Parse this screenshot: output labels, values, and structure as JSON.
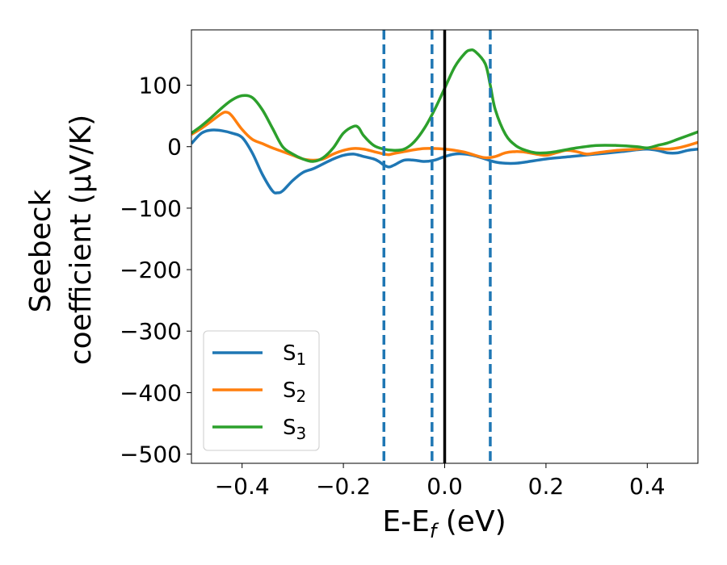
{
  "chart_data": {
    "type": "line",
    "title": "",
    "xlabel": "E-E",
    "xlabel_sub": "f",
    "xlabel_unit": " (eV)",
    "ylabel_line1": "Seebeck",
    "ylabel_line2": "coefficient  (μV/K)",
    "xlim": [
      -0.5,
      0.5
    ],
    "ylim": [
      -515,
      190
    ],
    "x_ticks": [
      -0.4,
      -0.2,
      0.0,
      0.2,
      0.4
    ],
    "x_tick_labels": [
      "−0.4",
      "−0.2",
      "0.0",
      "0.2",
      "0.4"
    ],
    "y_ticks": [
      100,
      0,
      -100,
      -200,
      -300,
      -400,
      -500
    ],
    "y_tick_labels": [
      "100",
      "0",
      "−100",
      "−200",
      "−300",
      "−400",
      "−500"
    ],
    "legend_position": "lower-left",
    "grid": false,
    "series": [
      {
        "name": "S",
        "sub": "1",
        "color": "#1f77b4",
        "points": [
          [
            -0.5,
            5
          ],
          [
            -0.48,
            22
          ],
          [
            -0.46,
            27
          ],
          [
            -0.44,
            26
          ],
          [
            -0.42,
            22
          ],
          [
            -0.4,
            15
          ],
          [
            -0.38,
            -10
          ],
          [
            -0.36,
            -45
          ],
          [
            -0.34,
            -72
          ],
          [
            -0.33,
            -75
          ],
          [
            -0.32,
            -72
          ],
          [
            -0.3,
            -55
          ],
          [
            -0.28,
            -42
          ],
          [
            -0.26,
            -36
          ],
          [
            -0.24,
            -28
          ],
          [
            -0.22,
            -20
          ],
          [
            -0.2,
            -14
          ],
          [
            -0.18,
            -12
          ],
          [
            -0.16,
            -16
          ],
          [
            -0.14,
            -20
          ],
          [
            -0.13,
            -24
          ],
          [
            -0.12,
            -30
          ],
          [
            -0.11,
            -33
          ],
          [
            -0.1,
            -30
          ],
          [
            -0.08,
            -22
          ],
          [
            -0.06,
            -22
          ],
          [
            -0.04,
            -24
          ],
          [
            -0.02,
            -22
          ],
          [
            0.0,
            -16
          ],
          [
            0.02,
            -12
          ],
          [
            0.04,
            -12
          ],
          [
            0.06,
            -15
          ],
          [
            0.08,
            -20
          ],
          [
            0.1,
            -25
          ],
          [
            0.12,
            -27
          ],
          [
            0.14,
            -27
          ],
          [
            0.16,
            -25
          ],
          [
            0.2,
            -20
          ],
          [
            0.25,
            -16
          ],
          [
            0.3,
            -12
          ],
          [
            0.35,
            -8
          ],
          [
            0.38,
            -5
          ],
          [
            0.4,
            -4
          ],
          [
            0.42,
            -6
          ],
          [
            0.44,
            -10
          ],
          [
            0.46,
            -10
          ],
          [
            0.48,
            -6
          ],
          [
            0.5,
            -4
          ]
        ]
      },
      {
        "name": "S",
        "sub": "2",
        "color": "#ff7f0e",
        "points": [
          [
            -0.5,
            20
          ],
          [
            -0.48,
            30
          ],
          [
            -0.46,
            42
          ],
          [
            -0.44,
            54
          ],
          [
            -0.43,
            56
          ],
          [
            -0.42,
            50
          ],
          [
            -0.4,
            28
          ],
          [
            -0.38,
            12
          ],
          [
            -0.36,
            5
          ],
          [
            -0.34,
            -2
          ],
          [
            -0.32,
            -8
          ],
          [
            -0.3,
            -14
          ],
          [
            -0.28,
            -20
          ],
          [
            -0.26,
            -22
          ],
          [
            -0.24,
            -20
          ],
          [
            -0.22,
            -12
          ],
          [
            -0.2,
            -6
          ],
          [
            -0.18,
            -3
          ],
          [
            -0.16,
            -4
          ],
          [
            -0.14,
            -8
          ],
          [
            -0.12,
            -12
          ],
          [
            -0.11,
            -13
          ],
          [
            -0.1,
            -11
          ],
          [
            -0.08,
            -8
          ],
          [
            -0.06,
            -5
          ],
          [
            -0.04,
            -3
          ],
          [
            -0.02,
            -3
          ],
          [
            0.0,
            -4
          ],
          [
            0.02,
            -6
          ],
          [
            0.04,
            -9
          ],
          [
            0.06,
            -14
          ],
          [
            0.08,
            -18
          ],
          [
            0.1,
            -16
          ],
          [
            0.12,
            -10
          ],
          [
            0.14,
            -8
          ],
          [
            0.16,
            -9
          ],
          [
            0.18,
            -12
          ],
          [
            0.2,
            -14
          ],
          [
            0.22,
            -10
          ],
          [
            0.24,
            -6
          ],
          [
            0.26,
            -8
          ],
          [
            0.28,
            -12
          ],
          [
            0.3,
            -10
          ],
          [
            0.34,
            -6
          ],
          [
            0.38,
            -4
          ],
          [
            0.4,
            -2
          ],
          [
            0.42,
            -3
          ],
          [
            0.44,
            -4
          ],
          [
            0.46,
            -2
          ],
          [
            0.48,
            2
          ],
          [
            0.5,
            7
          ]
        ]
      },
      {
        "name": "S",
        "sub": "3",
        "color": "#2ca02c",
        "points": [
          [
            -0.5,
            22
          ],
          [
            -0.48,
            34
          ],
          [
            -0.46,
            48
          ],
          [
            -0.44,
            63
          ],
          [
            -0.42,
            76
          ],
          [
            -0.4,
            83
          ],
          [
            -0.38,
            80
          ],
          [
            -0.36,
            60
          ],
          [
            -0.34,
            30
          ],
          [
            -0.32,
            0
          ],
          [
            -0.3,
            -12
          ],
          [
            -0.28,
            -20
          ],
          [
            -0.26,
            -24
          ],
          [
            -0.24,
            -18
          ],
          [
            -0.22,
            -2
          ],
          [
            -0.2,
            22
          ],
          [
            -0.18,
            33
          ],
          [
            -0.17,
            31
          ],
          [
            -0.16,
            18
          ],
          [
            -0.14,
            2
          ],
          [
            -0.12,
            -4
          ],
          [
            -0.1,
            -6
          ],
          [
            -0.08,
            -4
          ],
          [
            -0.06,
            8
          ],
          [
            -0.04,
            30
          ],
          [
            -0.02,
            60
          ],
          [
            0.0,
            95
          ],
          [
            0.02,
            130
          ],
          [
            0.04,
            152
          ],
          [
            0.05,
            157
          ],
          [
            0.06,
            155
          ],
          [
            0.08,
            135
          ],
          [
            0.09,
            100
          ],
          [
            0.1,
            60
          ],
          [
            0.12,
            20
          ],
          [
            0.14,
            2
          ],
          [
            0.16,
            -6
          ],
          [
            0.18,
            -10
          ],
          [
            0.2,
            -10
          ],
          [
            0.22,
            -8
          ],
          [
            0.26,
            -2
          ],
          [
            0.3,
            2
          ],
          [
            0.34,
            2
          ],
          [
            0.38,
            0
          ],
          [
            0.4,
            -2
          ],
          [
            0.42,
            2
          ],
          [
            0.44,
            6
          ],
          [
            0.46,
            12
          ],
          [
            0.48,
            18
          ],
          [
            0.5,
            24
          ]
        ]
      }
    ],
    "vertical_lines": [
      {
        "x": -0.12,
        "style": "dashed",
        "color": "#1f77b4"
      },
      {
        "x": -0.025,
        "style": "dashed",
        "color": "#1f77b4"
      },
      {
        "x": 0.0,
        "style": "solid",
        "color": "#000000"
      },
      {
        "x": 0.09,
        "style": "dashed",
        "color": "#1f77b4"
      }
    ]
  }
}
